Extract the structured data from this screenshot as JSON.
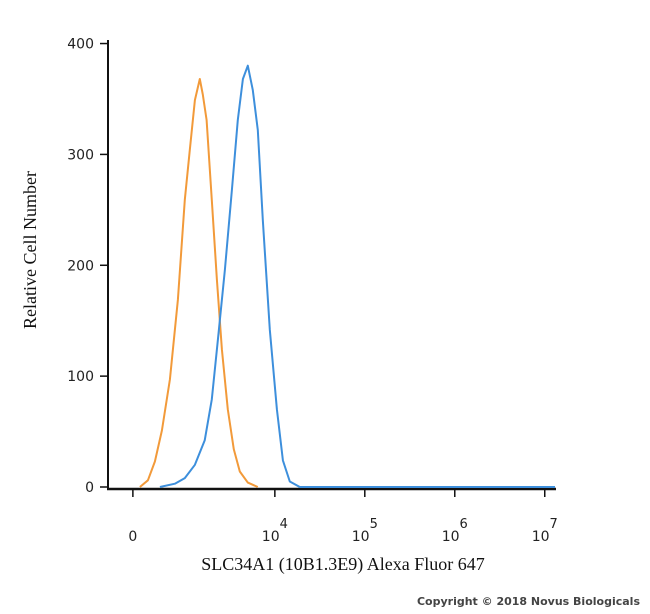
{
  "chart_data": {
    "type": "histogram-overlay",
    "y_label": "Relative Cell Number",
    "x_label": "SLC34A1 (10B1.3E9) Alexa Fluor 647",
    "copyright": "Copyright © 2018 Novus Biologicals",
    "xscale": "biexponential",
    "xlim": [
      -360,
      13000000
    ],
    "ylim": [
      0,
      405
    ],
    "yticks": [
      0,
      100,
      200,
      300,
      400
    ],
    "xticks": [
      {
        "value": 0,
        "label": "0"
      },
      {
        "value": 10000,
        "label": "10",
        "superscript": "4"
      },
      {
        "value": 100000,
        "label": "10",
        "superscript": "5"
      },
      {
        "value": 1000000,
        "label": "10",
        "superscript": "6"
      },
      {
        "value": 10000000,
        "label": "10",
        "superscript": "7"
      }
    ],
    "series": [
      {
        "color": "#f29a3a",
        "x": [
          95,
          208,
          314,
          430,
          580,
          753,
          929,
          1074,
          1240,
          1420,
          1538,
          1703,
          1960,
          2241,
          2551,
          2982,
          3484,
          4069,
          5000,
          6464
        ],
        "values": [
          0,
          6,
          23,
          51,
          97,
          169,
          259,
          304,
          349,
          368,
          354,
          331,
          259,
          187,
          124,
          70,
          34,
          14,
          4,
          0
        ]
      },
      {
        "color": "#3d8fdc",
        "x": [
          395,
          685,
          929,
          1240,
          1618,
          1960,
          2300,
          2759,
          3309,
          3863,
          4397,
          5000,
          5685,
          6464,
          7348,
          8797,
          10527,
          12278,
          14680,
          18965,
          13000000
        ],
        "values": [
          0,
          3,
          8,
          20,
          42,
          79,
          133,
          196,
          268,
          331,
          368,
          380,
          358,
          322,
          241,
          142,
          70,
          24,
          5,
          0,
          0
        ]
      }
    ]
  }
}
